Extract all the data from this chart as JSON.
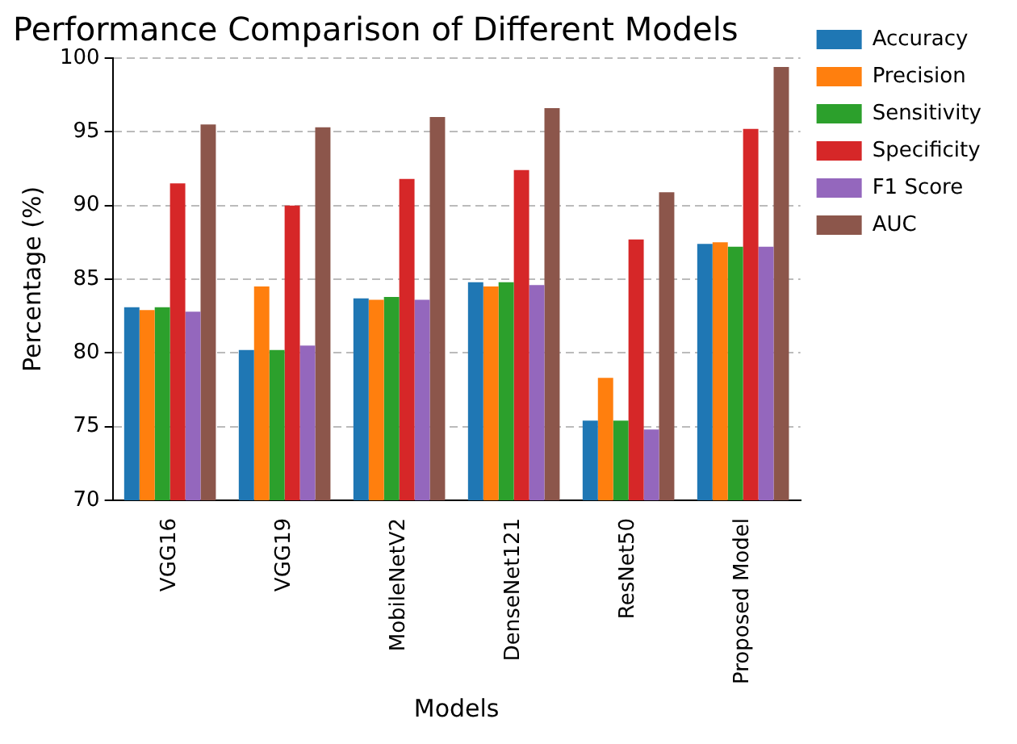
{
  "chart_data": {
    "type": "bar",
    "title": "Performance Comparison of Different Models",
    "xlabel": "Models",
    "ylabel": "Percentage (%)",
    "categories": [
      "VGG16",
      "VGG19",
      "MobileNetV2",
      "DenseNet121",
      "ResNet50",
      "Proposed Model"
    ],
    "series": [
      {
        "name": "Accuracy",
        "color": "#1f77b4",
        "values": [
          83.1,
          80.2,
          83.7,
          84.8,
          75.4,
          87.4
        ]
      },
      {
        "name": "Precision",
        "color": "#ff7f0e",
        "values": [
          82.9,
          84.5,
          83.6,
          84.5,
          78.3,
          87.5
        ]
      },
      {
        "name": "Sensitivity",
        "color": "#2ca02c",
        "values": [
          83.1,
          80.2,
          83.8,
          84.8,
          75.4,
          87.2
        ]
      },
      {
        "name": "Specificity",
        "color": "#d62728",
        "values": [
          91.5,
          90.0,
          91.8,
          92.4,
          87.7,
          95.2
        ]
      },
      {
        "name": "F1 Score",
        "color": "#9467bd",
        "values": [
          82.8,
          80.5,
          83.6,
          84.6,
          74.8,
          87.2
        ]
      },
      {
        "name": "AUC",
        "color": "#8c564b",
        "values": [
          95.5,
          95.3,
          96.0,
          96.6,
          90.9,
          99.4
        ]
      }
    ],
    "ylim": [
      70,
      100
    ],
    "yticks": [
      70,
      75,
      80,
      85,
      90,
      95,
      100
    ],
    "grid": "y",
    "legend": "right"
  }
}
